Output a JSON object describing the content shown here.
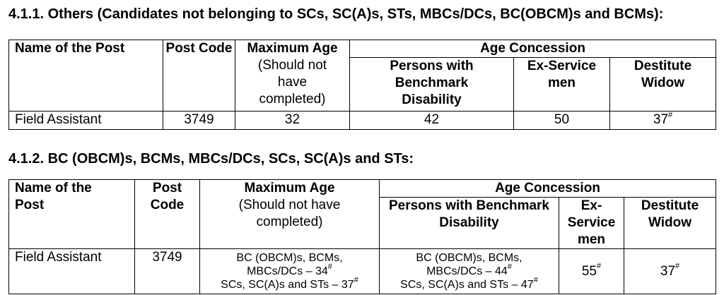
{
  "section1": {
    "heading": "4.1.1. Others (Candidates not belonging to SCs, SC(A)s, STs, MBCs/DCs, BC(OBCM)s and BCMs):",
    "headers": {
      "post_name": "Name of the Post",
      "post_code": "Post Code",
      "max_age_title": "Maximum Age",
      "max_age_note": "(Should not have completed)",
      "age_concession": "Age Concession",
      "pwbd": "Persons with Benchmark Disability",
      "ex_service": "Ex-Service men",
      "destitute_widow": "Destitute Widow"
    },
    "row": {
      "post_name": "Field Assistant",
      "post_code": "3749",
      "max_age": "32",
      "pwbd": "42",
      "ex_service": "50",
      "destitute_widow": "37",
      "destitute_widow_mark": "#"
    }
  },
  "section2": {
    "heading": "4.1.2. BC (OBCM)s, BCMs, MBCs/DCs, SCs, SC(A)s and STs:",
    "headers": {
      "post_name": "Name of the Post",
      "post_code": "Post Code",
      "max_age_title": "Maximum Age",
      "max_age_note": "(Should not have completed)",
      "age_concession": "Age Concession",
      "pwbd": "Persons with Benchmark Disability",
      "ex_service": "Ex-Service men",
      "destitute_widow": "Destitute Widow"
    },
    "row": {
      "post_name": "Field Assistant",
      "post_code": "3749",
      "max_age_line1": "BC (OBCM)s, BCMs,",
      "max_age_line2": "MBCs/DCs – 34",
      "max_age_line3": "SCs, SC(A)s and STs – 37",
      "pwbd_line1": "BC (OBCM)s, BCMs,",
      "pwbd_line2": "MBCs/DCs – 44",
      "pwbd_line3": "SCs, SC(A)s and STs – 47",
      "ex_service": "55",
      "destitute_widow": "37",
      "mark": "#"
    }
  }
}
